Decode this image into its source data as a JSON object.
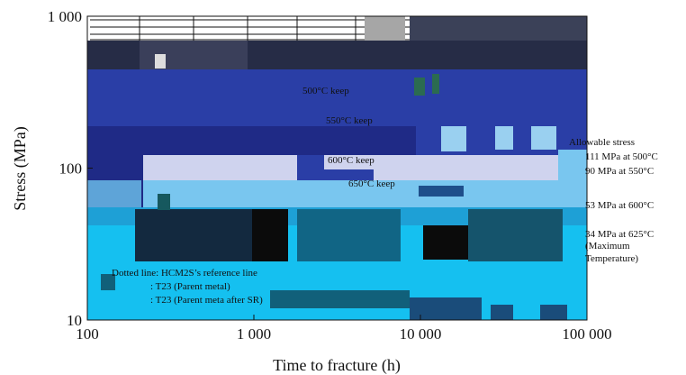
{
  "chart_data": {
    "type": "scatter",
    "title": "",
    "xlabel": "Time to fracture (h)",
    "ylabel": "Stress (MPa)",
    "x_scale": "log",
    "y_scale": "log",
    "xlim": [
      100,
      100000
    ],
    "ylim": [
      10,
      1000
    ],
    "x_ticks": [
      100,
      1000,
      10000,
      100000
    ],
    "x_tick_labels": [
      "100",
      "1 000",
      "10 000",
      "100 000"
    ],
    "y_ticks": [
      10,
      100,
      1000
    ],
    "y_tick_labels": [
      "10",
      "100",
      "1 000"
    ],
    "grid": false,
    "annotations": {
      "t500": "500°C keep",
      "t550": "550°C keep",
      "t600": "600°C keep",
      "t650": "650°C keep",
      "allow": "Allowable stress",
      "a500": "111 MPa at 500°C",
      "a550": "90 MPa at 550°C",
      "a600": "53 MPa at 600°C",
      "a625": "34 MPa at 625°C",
      "max1": "(Maximum",
      "max2": "Temperature)",
      "leg1": "Dotted line: HCM2S’s reference line",
      "leg2": ": T23 (Parent metal)",
      "leg3": ": T23 (Parent meta after SR)"
    },
    "allowable_stress": [
      {
        "temperature_c": 500,
        "stress_mpa": 111
      },
      {
        "temperature_c": 550,
        "stress_mpa": 90
      },
      {
        "temperature_c": 600,
        "stress_mpa": 53
      },
      {
        "temperature_c": 625,
        "stress_mpa": 34
      }
    ],
    "colors": {
      "dark_navy": "#1f2a6e",
      "blue": "#2a3ea6",
      "lavender": "#cfd3ee",
      "light_blue": "#79c6ef",
      "cyan": "#15c0f0",
      "teal": "#11607a",
      "black": "#0b0b0b"
    }
  }
}
